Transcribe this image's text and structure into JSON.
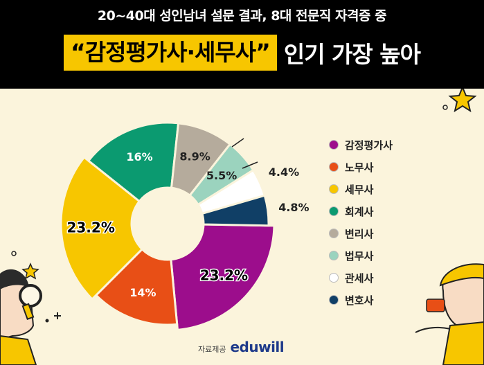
{
  "header": {
    "subtitle": "20~40대 성인남녀 설문 결과, 8대 전문직 자격증 중",
    "title_highlight": "“감정평가사·세무사”",
    "title_rest": "인기 가장 높아"
  },
  "chart_data": {
    "type": "pie",
    "donut": true,
    "categories": [
      "감정평가사",
      "노무사",
      "세무사",
      "회계사",
      "변리사",
      "법무사",
      "관세사",
      "변호사"
    ],
    "values": [
      23.2,
      14,
      23.2,
      16,
      8.9,
      5.5,
      4.4,
      4.8
    ],
    "labels": [
      "23.2%",
      "14%",
      "23.2%",
      "16%",
      "8.9%",
      "5.5%",
      "4.4%",
      "4.8%"
    ],
    "colors": [
      "#9c0d8c",
      "#e84f16",
      "#f7c600",
      "#0b9a70",
      "#b5ab9c",
      "#9bd3be",
      "#ffffff",
      "#103f66"
    ],
    "legend_position": "right"
  },
  "credit": {
    "label": "자료제공",
    "brand": "eduwill"
  }
}
